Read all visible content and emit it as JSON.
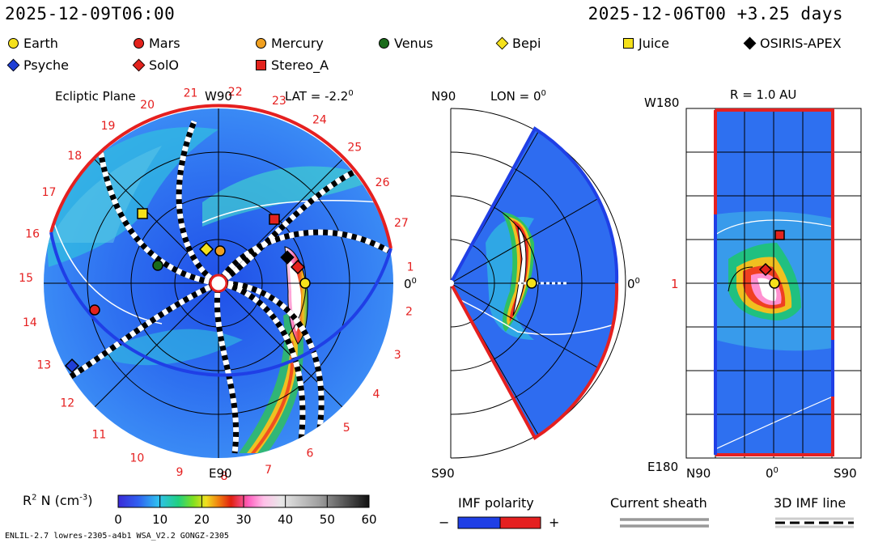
{
  "header": {
    "current_time": "2025-12-09T06:00",
    "model_run": "2025-12-06T00 +3.25 days"
  },
  "legend": [
    {
      "name": "Earth",
      "marker": "circle",
      "color": "#f5e11b"
    },
    {
      "name": "Mars",
      "marker": "circle",
      "color": "#e3231d"
    },
    {
      "name": "Mercury",
      "marker": "circle",
      "color": "#f0a020"
    },
    {
      "name": "Venus",
      "marker": "circle",
      "color": "#1a6b1a"
    },
    {
      "name": "Bepi",
      "marker": "diamond",
      "color": "#f5e11b"
    },
    {
      "name": "Juice",
      "marker": "square",
      "color": "#f5e11b"
    },
    {
      "name": "OSIRIS-APEX",
      "marker": "diamond",
      "color": "#000000"
    },
    {
      "name": "Psyche",
      "marker": "diamond",
      "color": "#1f3fd6"
    },
    {
      "name": "SolO",
      "marker": "diamond",
      "color": "#e3231d"
    },
    {
      "name": "Stereo_A",
      "marker": "square",
      "color": "#e3231d"
    }
  ],
  "ecliptic": {
    "title": "Ecliptic Plane",
    "top_label": "W90",
    "bottom_label": "E90",
    "right_label": "0",
    "right_label_sup": "0",
    "lat_label": "LAT = -2.2",
    "lat_sup": "0",
    "sector_numbers": [
      "1",
      "2",
      "3",
      "4",
      "5",
      "6",
      "7",
      "8",
      "9",
      "10",
      "11",
      "12",
      "13",
      "14",
      "15",
      "16",
      "17",
      "18",
      "19",
      "20",
      "21",
      "22",
      "23",
      "24",
      "25",
      "26",
      "27"
    ]
  },
  "meridional": {
    "top_label": "N90",
    "bottom_label": "S90",
    "right_label": "0",
    "right_label_sup": "0",
    "lon_label": "LON = 0",
    "lon_sup": "0"
  },
  "sphere": {
    "r_label": "R = 1.0 AU",
    "top_left": "W180",
    "bottom_left": "E180",
    "left_mid": "1",
    "bottom_labels": [
      "N90",
      "0",
      "S90"
    ],
    "bottom_mid_sup": "0"
  },
  "colorbar": {
    "label": "R",
    "label_sup": "2",
    "label_rest": " N (cm",
    "label_sup2": "-3",
    "label_end": ")",
    "ticks": [
      "0",
      "10",
      "20",
      "30",
      "40",
      "50",
      "60"
    ]
  },
  "imf": {
    "title": "IMF polarity",
    "minus": "−",
    "plus": "+",
    "colors": [
      "#1f3fe6",
      "#e52020"
    ]
  },
  "sheath": {
    "title": "Current sheath"
  },
  "line3d": {
    "title": "3D IMF line"
  },
  "footer": {
    "text": "ENLIL-2.7 lowres-2305-a4b1 WSA_V2.2 GONGZ-2305"
  }
}
